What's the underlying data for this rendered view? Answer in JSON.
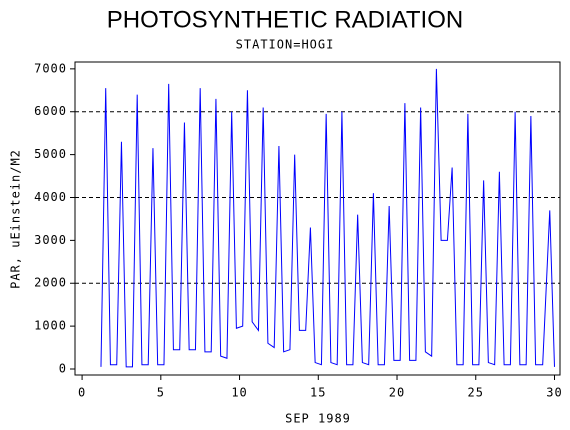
{
  "chart_data": {
    "type": "line",
    "title": "PHOTOSYNTHETIC RADIATION",
    "subtitle": "STATION=HOGI",
    "x_label": "SEP 1989",
    "y_label": "PAR, uEinstein/M2",
    "color": "#0000ff",
    "xlim": [
      -0.45,
      30.35
    ],
    "ylim": [
      -140,
      7160
    ],
    "xticks": [
      0,
      5,
      10,
      15,
      20,
      25,
      30
    ],
    "yticks": [
      0,
      1000,
      2000,
      3000,
      4000,
      5000,
      6000,
      7000
    ],
    "gridlines": [
      2000,
      4000,
      6000
    ],
    "grid_style": "dashed",
    "x": [
      1.2,
      1.5,
      1.8,
      2.2,
      2.5,
      2.8,
      3.2,
      3.5,
      3.8,
      4.2,
      4.5,
      4.8,
      5.2,
      5.5,
      5.8,
      6.2,
      6.5,
      6.8,
      7.2,
      7.5,
      7.8,
      8.2,
      8.5,
      8.8,
      9.2,
      9.5,
      9.8,
      10.2,
      10.5,
      10.8,
      11.2,
      11.5,
      11.8,
      12.2,
      12.5,
      12.8,
      13.2,
      13.5,
      13.8,
      14.2,
      14.5,
      14.8,
      15.2,
      15.5,
      15.8,
      16.2,
      16.5,
      16.8,
      17.2,
      17.5,
      17.8,
      18.2,
      18.5,
      18.8,
      19.2,
      19.5,
      19.8,
      20.2,
      20.5,
      20.8,
      21.2,
      21.5,
      21.8,
      22.2,
      22.5,
      22.8,
      23.2,
      23.5,
      23.8,
      24.2,
      24.5,
      24.8,
      25.2,
      25.5,
      25.8,
      26.2,
      26.5,
      26.8,
      27.2,
      27.5,
      27.8,
      28.2,
      28.5,
      28.8,
      29.25,
      29.7,
      30.0
    ],
    "values": [
      50,
      6550,
      100,
      100,
      5300,
      50,
      50,
      6400,
      100,
      100,
      5150,
      100,
      100,
      6650,
      450,
      450,
      5750,
      450,
      450,
      6550,
      400,
      400,
      6300,
      300,
      250,
      6000,
      950,
      1000,
      6500,
      1100,
      900,
      6100,
      600,
      500,
      5200,
      400,
      450,
      5000,
      900,
      900,
      3300,
      150,
      100,
      5950,
      150,
      100,
      6000,
      100,
      100,
      3600,
      150,
      100,
      4100,
      100,
      100,
      3800,
      200,
      200,
      6200,
      200,
      200,
      6100,
      400,
      300,
      7000,
      3000,
      3000,
      4700,
      100,
      100,
      5950,
      100,
      100,
      4400,
      150,
      100,
      4600,
      100,
      100,
      6000,
      100,
      100,
      5900,
      100,
      100,
      3700,
      50
    ]
  }
}
